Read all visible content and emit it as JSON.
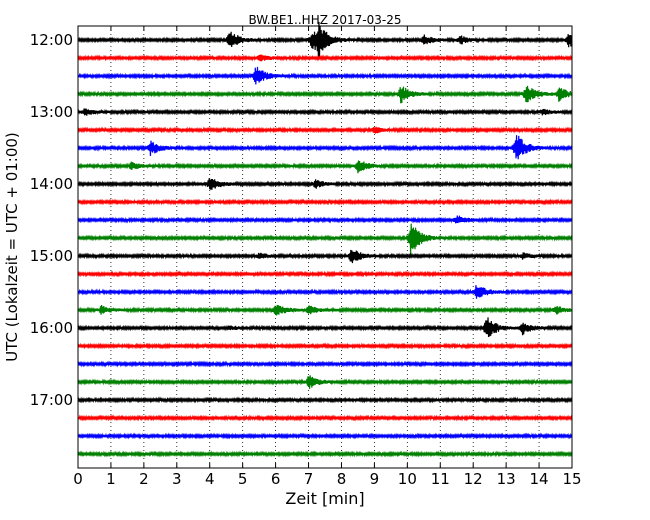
{
  "chart_data": {
    "type": "line",
    "title": "BW.BE1..HHZ 2017-03-25",
    "xlabel": "Zeit  [min]",
    "ylabel": "UTC (Lokalzeit = UTC + 01:00)",
    "xlim": [
      0,
      15
    ],
    "x_ticks": [
      "0",
      "1",
      "2",
      "3",
      "4",
      "5",
      "6",
      "7",
      "8",
      "9",
      "10",
      "11",
      "12",
      "13",
      "14",
      "15"
    ],
    "y_tick_labels": [
      "12:00",
      "13:00",
      "14:00",
      "15:00",
      "16:00",
      "17:00"
    ],
    "grid": "vertical dotted",
    "trace_colors": [
      "#000000",
      "#ff0000",
      "#0000ff",
      "#008000"
    ],
    "traces": [
      {
        "start": "12:00",
        "color": "#000000",
        "events": [
          [
            4.6,
            10
          ],
          [
            7.1,
            11
          ],
          [
            7.3,
            14
          ],
          [
            10.5,
            5
          ],
          [
            11.6,
            4
          ],
          [
            14.9,
            7
          ]
        ]
      },
      {
        "start": "12:15",
        "color": "#ff0000",
        "events": [
          [
            5.5,
            3
          ]
        ]
      },
      {
        "start": "12:30",
        "color": "#0000ff",
        "events": [
          [
            5.4,
            10
          ]
        ]
      },
      {
        "start": "12:45",
        "color": "#008000",
        "events": [
          [
            9.8,
            9
          ],
          [
            13.6,
            10
          ],
          [
            14.6,
            7
          ]
        ]
      },
      {
        "start": "13:00",
        "color": "#000000",
        "events": [
          [
            0.2,
            4
          ],
          [
            14.1,
            3
          ]
        ]
      },
      {
        "start": "13:15",
        "color": "#ff0000",
        "events": [
          [
            9.0,
            3
          ]
        ]
      },
      {
        "start": "13:30",
        "color": "#0000ff",
        "events": [
          [
            2.2,
            7
          ],
          [
            13.3,
            16
          ]
        ]
      },
      {
        "start": "13:45",
        "color": "#008000",
        "events": [
          [
            1.6,
            4
          ],
          [
            8.5,
            7
          ]
        ]
      },
      {
        "start": "14:00",
        "color": "#000000",
        "events": [
          [
            4.0,
            7
          ],
          [
            7.2,
            4
          ]
        ]
      },
      {
        "start": "14:15",
        "color": "#ff0000",
        "events": []
      },
      {
        "start": "14:30",
        "color": "#0000ff",
        "events": [
          [
            11.5,
            5
          ]
        ]
      },
      {
        "start": "14:45",
        "color": "#008000",
        "events": [
          [
            10.1,
            18
          ]
        ]
      },
      {
        "start": "15:00",
        "color": "#000000",
        "events": [
          [
            8.3,
            8
          ],
          [
            5.5,
            3
          ],
          [
            13.5,
            3
          ]
        ]
      },
      {
        "start": "15:15",
        "color": "#ff0000",
        "events": []
      },
      {
        "start": "15:30",
        "color": "#0000ff",
        "events": [
          [
            12.1,
            8
          ]
        ]
      },
      {
        "start": "15:45",
        "color": "#008000",
        "events": [
          [
            0.7,
            4
          ],
          [
            6.0,
            6
          ],
          [
            7.0,
            4
          ],
          [
            14.5,
            4
          ]
        ]
      },
      {
        "start": "16:00",
        "color": "#000000",
        "events": [
          [
            12.4,
            12
          ],
          [
            13.5,
            6
          ],
          [
            4.6,
            2
          ]
        ]
      },
      {
        "start": "16:15",
        "color": "#ff0000",
        "events": []
      },
      {
        "start": "16:30",
        "color": "#0000ff",
        "events": []
      },
      {
        "start": "16:45",
        "color": "#008000",
        "events": [
          [
            7.0,
            7
          ]
        ]
      },
      {
        "start": "17:00",
        "color": "#000000",
        "events": []
      },
      {
        "start": "17:15",
        "color": "#ff0000",
        "events": []
      },
      {
        "start": "17:30",
        "color": "#0000ff",
        "events": []
      },
      {
        "start": "17:45",
        "color": "#008000",
        "events": []
      }
    ]
  }
}
